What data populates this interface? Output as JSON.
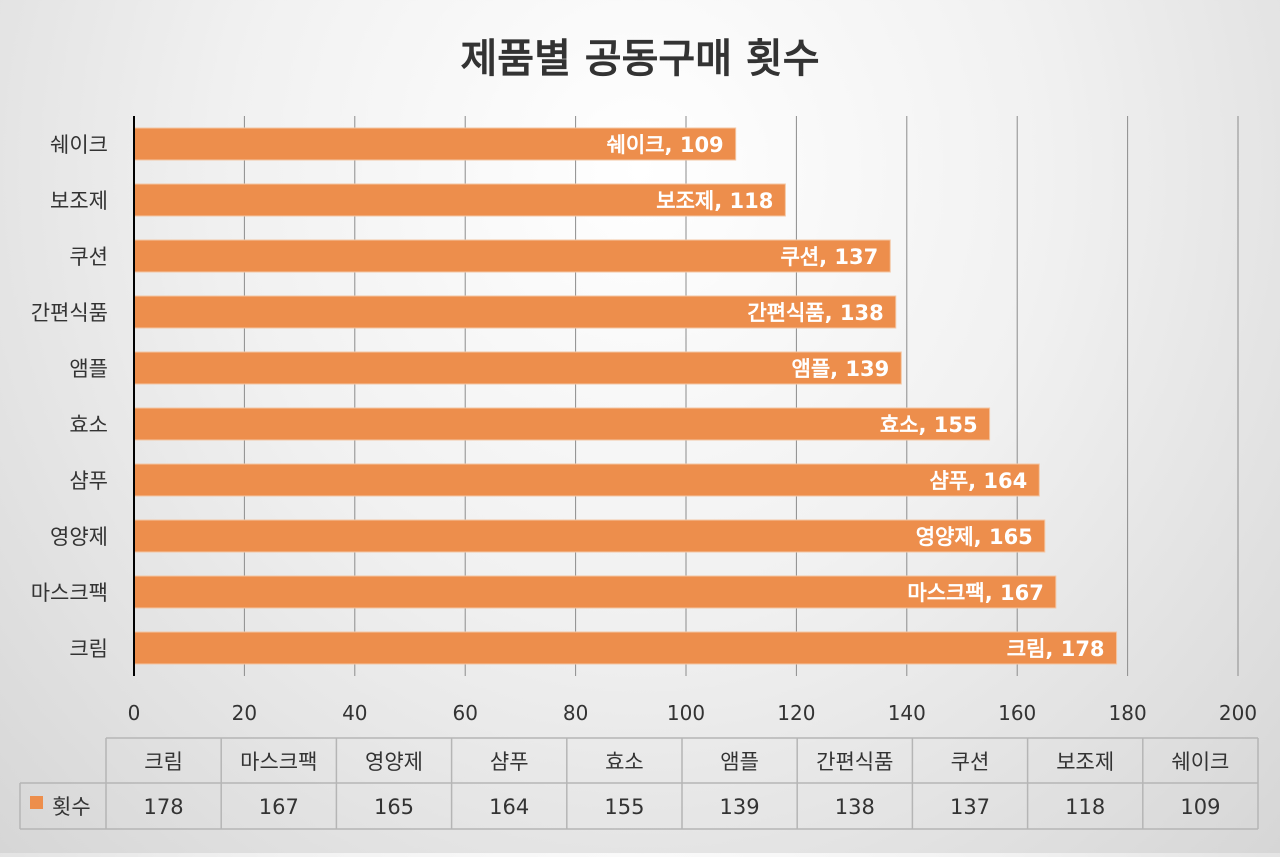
{
  "chart_data": {
    "type": "bar",
    "orientation": "horizontal",
    "title": "제품별 공동구매 횟수",
    "categories": [
      "크림",
      "마스크팩",
      "영양제",
      "샴푸",
      "효소",
      "앰플",
      "간편식품",
      "쿠션",
      "보조제",
      "쉐이크"
    ],
    "series": [
      {
        "name": "횟수",
        "values": [
          178,
          167,
          165,
          164,
          155,
          139,
          138,
          137,
          118,
          109
        ]
      }
    ],
    "xlim": [
      0,
      200
    ],
    "x_ticks": [
      0,
      20,
      40,
      60,
      80,
      100,
      120,
      140,
      160,
      180,
      200
    ],
    "grid": true,
    "data_labels": "category, value (inside end)",
    "data_table": true,
    "legend": "in data table",
    "colors": {
      "bar": "#ED8E4C",
      "grid": "#8c8c8c",
      "axis": "#000000",
      "label": "#ffffff",
      "text": "#333333"
    }
  }
}
